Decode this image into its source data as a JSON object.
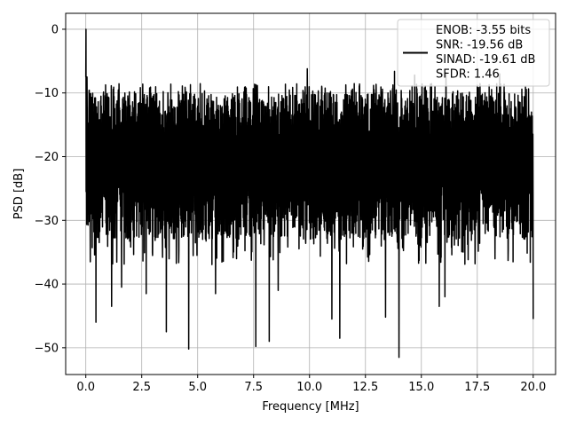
{
  "chart_data": {
    "type": "line",
    "title": "",
    "xlabel": "Frequency [MHz]",
    "ylabel": "PSD [dB]",
    "xlim": [
      -0.9,
      21.0
    ],
    "ylim": [
      -54.2,
      2.5
    ],
    "xticks": [
      0.0,
      2.5,
      5.0,
      7.5,
      10.0,
      12.5,
      15.0,
      17.5,
      20.0
    ],
    "xtick_labels": [
      "0.0",
      "2.5",
      "5.0",
      "7.5",
      "10.0",
      "12.5",
      "15.0",
      "17.5",
      "20.0"
    ],
    "yticks": [
      0,
      -10,
      -20,
      -30,
      -40,
      -50
    ],
    "ytick_labels": [
      "0",
      "−10",
      "−20",
      "−30",
      "−40",
      "−50"
    ],
    "grid": true,
    "legend_position": "top-right",
    "legend_lines": [
      "ENOB: -3.55 bits",
      "SNR: -19.56 dB",
      "SINAD: -19.61 dB",
      "SFDR: 1.46"
    ],
    "series": [
      {
        "color": "#000000",
        "x_range": [
          0.0,
          20.0
        ],
        "noise_floor_db": [
          -33,
          -10
        ],
        "peaks": [
          {
            "x": 0.0,
            "y": 0.0
          },
          {
            "x": 0.05,
            "y": -7.5
          },
          {
            "x": 9.9,
            "y": -6.2
          },
          {
            "x": 13.8,
            "y": -6.6
          },
          {
            "x": 14.7,
            "y": -7.2
          },
          {
            "x": 16.1,
            "y": -6.8
          },
          {
            "x": 18.5,
            "y": -7.0
          }
        ],
        "dips": [
          {
            "x": 0.2,
            "y": -36.5
          },
          {
            "x": 0.45,
            "y": -46.0
          },
          {
            "x": 0.6,
            "y": -33.5
          },
          {
            "x": 1.15,
            "y": -43.5
          },
          {
            "x": 1.6,
            "y": -40.5
          },
          {
            "x": 2.7,
            "y": -41.5
          },
          {
            "x": 3.6,
            "y": -47.5
          },
          {
            "x": 4.6,
            "y": -50.2
          },
          {
            "x": 5.8,
            "y": -41.5
          },
          {
            "x": 7.6,
            "y": -49.8
          },
          {
            "x": 8.2,
            "y": -49.0
          },
          {
            "x": 8.6,
            "y": -41.0
          },
          {
            "x": 11.0,
            "y": -45.5
          },
          {
            "x": 11.35,
            "y": -48.5
          },
          {
            "x": 13.4,
            "y": -45.2
          },
          {
            "x": 14.0,
            "y": -51.5
          },
          {
            "x": 15.8,
            "y": -43.5
          },
          {
            "x": 16.05,
            "y": -42.0
          },
          {
            "x": 19.1,
            "y": -36.5
          },
          {
            "x": 20.0,
            "y": -45.5
          }
        ]
      }
    ]
  }
}
